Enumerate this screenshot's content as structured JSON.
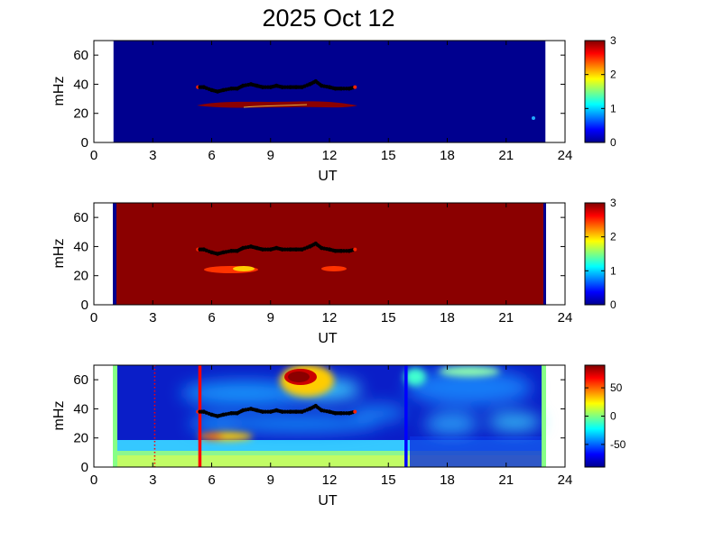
{
  "figure": {
    "title": "2025 Oct 12"
  },
  "chart_data": [
    {
      "type": "heatmap",
      "panel": "top",
      "xlabel": "UT",
      "ylabel": "mHz",
      "xlim": [
        0,
        24
      ],
      "ylim": [
        0,
        70
      ],
      "xticks": [
        0,
        3,
        6,
        9,
        12,
        15,
        18,
        21,
        24
      ],
      "yticks": [
        0,
        20,
        40,
        60
      ],
      "data_span_ut": [
        1,
        23
      ],
      "colorbar": {
        "range": [
          0,
          3
        ],
        "ticks": [
          0,
          1,
          2,
          3
        ]
      },
      "background_value": 0,
      "features": [
        {
          "kind": "band",
          "value": 3,
          "ut": [
            5.3,
            13.3
          ],
          "mhz_center": 26,
          "mhz_halfwidth": 3
        },
        {
          "kind": "spot",
          "value": 1.3,
          "ut": 22.6,
          "mhz": 16
        }
      ],
      "trace_mhz": {
        "ut": [
          5.3,
          5.6,
          6.0,
          6.3,
          6.6,
          7.0,
          7.3,
          7.6,
          8.0,
          8.3,
          8.6,
          9.0,
          9.3,
          9.6,
          10.0,
          10.3,
          10.6,
          11.0,
          11.3,
          11.6,
          12.0,
          12.3,
          12.6,
          13.0,
          13.3
        ],
        "mhz": [
          38,
          38,
          36,
          35,
          36,
          37,
          37,
          39,
          40,
          39,
          38,
          38,
          39,
          38,
          38,
          38,
          38,
          40,
          42,
          39,
          38,
          37,
          37,
          37,
          38
        ]
      }
    },
    {
      "type": "heatmap",
      "panel": "middle",
      "xlabel": "UT",
      "ylabel": "mHz",
      "xlim": [
        0,
        24
      ],
      "ylim": [
        0,
        70
      ],
      "xticks": [
        0,
        3,
        6,
        9,
        12,
        15,
        18,
        21,
        24
      ],
      "yticks": [
        0,
        20,
        40,
        60
      ],
      "data_span_ut": [
        1,
        23
      ],
      "colorbar": {
        "range": [
          0,
          3
        ],
        "ticks": [
          0,
          1,
          2,
          3
        ]
      },
      "background_value": 3,
      "features": [
        {
          "kind": "edge",
          "value": 0,
          "ut": 1.0
        },
        {
          "kind": "edge",
          "value": 0,
          "ut": 22.9
        },
        {
          "kind": "band",
          "value": 2.2,
          "ut": [
            5.7,
            8.3
          ],
          "mhz_center": 24,
          "mhz_halfwidth": 2.5
        },
        {
          "kind": "band",
          "value": 2.4,
          "ut": [
            11.5,
            12.7
          ],
          "mhz_center": 24,
          "mhz_halfwidth": 1.5
        }
      ],
      "trace_mhz": {
        "ut": [
          5.3,
          5.6,
          6.0,
          6.3,
          6.6,
          7.0,
          7.3,
          7.6,
          8.0,
          8.3,
          8.6,
          9.0,
          9.3,
          9.6,
          10.0,
          10.3,
          10.6,
          11.0,
          11.3,
          11.6,
          12.0,
          12.3,
          12.6,
          13.0,
          13.3
        ],
        "mhz": [
          38,
          38,
          36,
          35,
          36,
          37,
          37,
          39,
          40,
          39,
          38,
          38,
          39,
          38,
          38,
          38,
          38,
          40,
          42,
          39,
          38,
          37,
          37,
          37,
          38
        ]
      }
    },
    {
      "type": "heatmap",
      "panel": "bottom",
      "xlabel": "UT",
      "ylabel": "mHz",
      "xlim": [
        0,
        24
      ],
      "ylim": [
        0,
        70
      ],
      "xticks": [
        0,
        3,
        6,
        9,
        12,
        15,
        18,
        21,
        24
      ],
      "yticks": [
        0,
        20,
        40,
        60
      ],
      "data_span_ut": [
        1,
        23
      ],
      "colorbar": {
        "range": [
          -90,
          90
        ],
        "ticks": [
          -50,
          0,
          50
        ]
      },
      "features": [
        {
          "kind": "hot_spot",
          "value": 90,
          "ut": [
            9.6,
            11.2
          ],
          "mhz": [
            58,
            70
          ]
        },
        {
          "kind": "warm_band",
          "value": 25,
          "ut": [
            5.0,
            8.0
          ],
          "mhz_center": 21,
          "mhz_halfwidth": 3
        },
        {
          "kind": "low_band",
          "value": -10,
          "ut": [
            1,
            23
          ],
          "mhz": [
            0,
            22
          ]
        }
      ],
      "vertical_lines": [
        {
          "ut": 5.4,
          "color": "#ff0000",
          "style": "solid"
        },
        {
          "ut": 3.1,
          "color": "#ff0000",
          "style": "dotted"
        },
        {
          "ut": 15.9,
          "color": "#0000ff",
          "style": "solid"
        }
      ],
      "trace_mhz": {
        "ut": [
          5.3,
          5.6,
          6.0,
          6.3,
          6.6,
          7.0,
          7.3,
          7.6,
          8.0,
          8.3,
          8.6,
          9.0,
          9.3,
          9.6,
          10.0,
          10.3,
          10.6,
          11.0,
          11.3,
          11.6,
          12.0,
          12.3,
          12.6,
          13.0,
          13.3
        ],
        "mhz": [
          38,
          38,
          36,
          35,
          36,
          37,
          37,
          39,
          40,
          39,
          38,
          38,
          39,
          38,
          38,
          38,
          38,
          40,
          42,
          39,
          38,
          37,
          37,
          37,
          38
        ]
      }
    }
  ]
}
